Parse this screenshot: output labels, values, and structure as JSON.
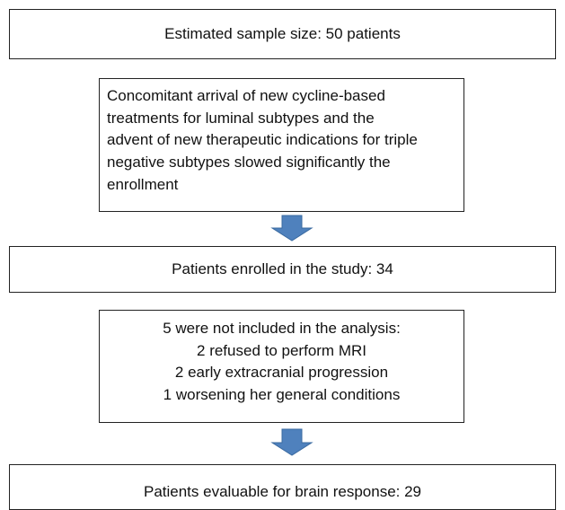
{
  "nodes": [
    {
      "label": "Estimated sample size: 50 patients"
    },
    {
      "lines": [
        "Concomitant arrival of new cycline-based",
        "treatments for luminal subtypes and the",
        "advent of new therapeutic indications for triple",
        "negative subtypes slowed significantly the",
        "enrollment"
      ]
    },
    {
      "label": "Patients enrolled in the study: 34"
    },
    {
      "lines": [
        "5 were not included in the analysis:",
        "2 refused to perform MRI",
        "2 early extracranial progression",
        "1 worsening her general conditions"
      ]
    },
    {
      "label": "Patients evaluable for brain response: 29"
    }
  ]
}
